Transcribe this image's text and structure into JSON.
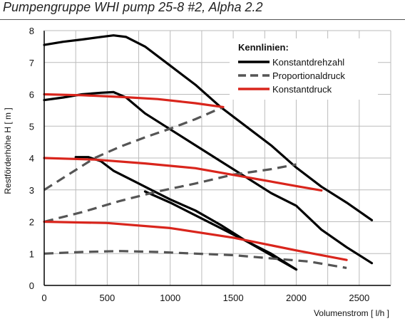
{
  "title": "Pumpengruppe WHI pump 25-8 #2, Alpha 2.2",
  "colors": {
    "Konstantdrehzahl": "#000000",
    "Proportionaldruck": "#555555",
    "Konstantdruck": "#d9251c",
    "grid": "#bbbbbb",
    "axis": "#000000"
  },
  "chart_data": {
    "type": "line",
    "title": "Pumpengruppe WHI pump 25-8 #2, Alpha 2.2",
    "xlabel": "Volumenstrom [ l/h ]",
    "ylabel": "Restförderhöhe H [ m ]",
    "xlim": [
      0,
      2750
    ],
    "ylim": [
      0,
      8
    ],
    "xticks": [
      0,
      500,
      1000,
      1500,
      2000,
      2500
    ],
    "yticks": [
      0,
      1,
      2,
      3,
      4,
      5,
      6,
      7,
      8
    ],
    "grid": true,
    "legend": {
      "title": "Kennlinien:",
      "position": "top-right",
      "entries": [
        "Konstantdrehzahl",
        "Proportionaldruck",
        "Konstantdruck"
      ]
    },
    "series": [
      {
        "name": "Konstantdrehzahl",
        "style": "solid",
        "points": [
          [
            0,
            7.55
          ],
          [
            150,
            7.65
          ],
          [
            300,
            7.72
          ],
          [
            450,
            7.8
          ],
          [
            550,
            7.85
          ],
          [
            650,
            7.8
          ],
          [
            800,
            7.5
          ],
          [
            1000,
            6.9
          ],
          [
            1200,
            6.3
          ],
          [
            1400,
            5.6
          ],
          [
            1600,
            5
          ],
          [
            1800,
            4.4
          ],
          [
            2000,
            3.7
          ],
          [
            2200,
            3.1
          ],
          [
            2400,
            2.6
          ],
          [
            2600,
            2.05
          ]
        ]
      },
      {
        "name": "Konstantdrehzahl",
        "style": "solid",
        "points": [
          [
            0,
            5.82
          ],
          [
            150,
            5.9
          ],
          [
            300,
            6
          ],
          [
            450,
            6.05
          ],
          [
            550,
            6.07
          ],
          [
            650,
            5.9
          ],
          [
            800,
            5.4
          ],
          [
            1000,
            4.9
          ],
          [
            1200,
            4.4
          ],
          [
            1400,
            3.9
          ],
          [
            1600,
            3.4
          ],
          [
            1800,
            2.9
          ],
          [
            2000,
            2.5
          ],
          [
            2200,
            1.75
          ],
          [
            2400,
            1.2
          ],
          [
            2600,
            0.7
          ]
        ]
      },
      {
        "name": "Konstantdrehzahl",
        "style": "solid",
        "points": [
          [
            250,
            4.03
          ],
          [
            350,
            4.03
          ],
          [
            450,
            3.9
          ],
          [
            550,
            3.6
          ],
          [
            700,
            3.3
          ],
          [
            850,
            3
          ],
          [
            1000,
            2.7
          ],
          [
            1200,
            2.35
          ],
          [
            1400,
            1.9
          ],
          [
            1600,
            1.4
          ],
          [
            1800,
            0.95
          ],
          [
            2000,
            0.5
          ]
        ]
      },
      {
        "name": "Konstantdrehzahl",
        "style": "solid",
        "points": [
          [
            800,
            2.95
          ],
          [
            1000,
            2.6
          ],
          [
            1200,
            2.2
          ],
          [
            1400,
            1.8
          ],
          [
            1600,
            1.4
          ],
          [
            1800,
            1.0
          ],
          [
            2000,
            0.5
          ]
        ]
      },
      {
        "name": "Proportionaldruck",
        "style": "dashed",
        "points": [
          [
            0,
            3
          ],
          [
            200,
            3.5
          ],
          [
            400,
            4
          ],
          [
            600,
            4.35
          ],
          [
            800,
            4.65
          ],
          [
            1000,
            4.92
          ],
          [
            1200,
            5.22
          ],
          [
            1420,
            5.6
          ]
        ]
      },
      {
        "name": "Proportionaldruck",
        "style": "dashed",
        "points": [
          [
            0,
            2
          ],
          [
            300,
            2.3
          ],
          [
            600,
            2.65
          ],
          [
            900,
            2.95
          ],
          [
            1200,
            3.2
          ],
          [
            1500,
            3.48
          ],
          [
            1800,
            3.65
          ],
          [
            2000,
            3.8
          ]
        ]
      },
      {
        "name": "Proportionaldruck",
        "style": "dashed",
        "points": [
          [
            0,
            1
          ],
          [
            300,
            1.05
          ],
          [
            600,
            1.08
          ],
          [
            900,
            1.05
          ],
          [
            1200,
            1.0
          ],
          [
            1500,
            0.95
          ],
          [
            1800,
            0.85
          ],
          [
            2100,
            0.75
          ],
          [
            2400,
            0.55
          ]
        ]
      },
      {
        "name": "Konstantdruck",
        "style": "solid",
        "points": [
          [
            0,
            6
          ],
          [
            300,
            5.97
          ],
          [
            600,
            5.92
          ],
          [
            900,
            5.85
          ],
          [
            1200,
            5.72
          ],
          [
            1420,
            5.6
          ]
        ]
      },
      {
        "name": "Konstantdruck",
        "style": "solid",
        "points": [
          [
            0,
            4
          ],
          [
            400,
            3.95
          ],
          [
            800,
            3.83
          ],
          [
            1200,
            3.68
          ],
          [
            1600,
            3.4
          ],
          [
            2000,
            3.12
          ],
          [
            2200,
            2.98
          ]
        ]
      },
      {
        "name": "Konstantdruck",
        "style": "solid",
        "points": [
          [
            0,
            2
          ],
          [
            500,
            1.96
          ],
          [
            1000,
            1.8
          ],
          [
            1500,
            1.5
          ],
          [
            2000,
            1.1
          ],
          [
            2400,
            0.8
          ]
        ]
      }
    ]
  }
}
